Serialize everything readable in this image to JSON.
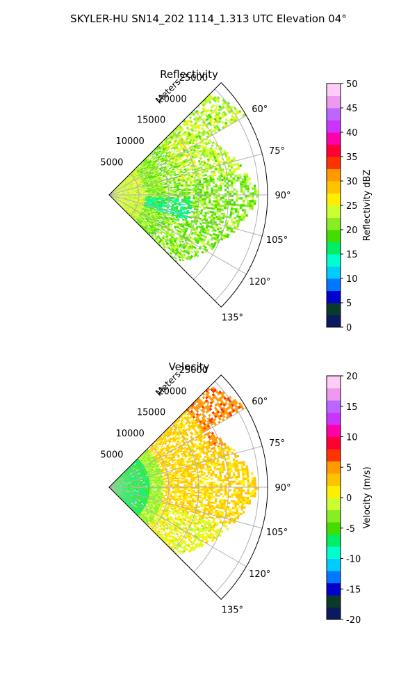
{
  "figure_title": "SKYLER-HU  SN14_202  1114_1.313 UTC Elevation 04°",
  "chart_data": [
    {
      "type": "heatmap",
      "projection": "polar-sector",
      "title": "Reflectivity",
      "radial_axis_label": "Meters",
      "radial_ticks": [
        "5000",
        "10000",
        "15000",
        "20000",
        "25000"
      ],
      "radial_tick_values": [
        5000,
        10000,
        15000,
        20000,
        25000
      ],
      "radial_max": 26500,
      "azimuth_range_deg": [
        45,
        135
      ],
      "azimuth_tick_labels": [
        "60°",
        "75°",
        "90°",
        "105°",
        "120°",
        "135°"
      ],
      "azimuth_tick_values": [
        60,
        75,
        90,
        105,
        120,
        135
      ],
      "grid": true,
      "colorbar": {
        "label": "Reflectivity dBZ",
        "range": [
          0,
          50
        ],
        "ticks": [
          "0",
          "5",
          "10",
          "15",
          "20",
          "25",
          "30",
          "35",
          "40",
          "45",
          "50"
        ],
        "tick_values": [
          0,
          5,
          10,
          15,
          20,
          25,
          30,
          35,
          40,
          45,
          50
        ],
        "colors": [
          "#0b1a5e",
          "#0a3a2a",
          "#0000cc",
          "#0077ff",
          "#00ccff",
          "#00ffcc",
          "#00ee66",
          "#44dd00",
          "#88ee22",
          "#ccff33",
          "#ffee00",
          "#ffc400",
          "#ff9a00",
          "#ff3300",
          "#ff0033",
          "#ff00aa",
          "#cc33ff",
          "#bb66ff",
          "#ee99ee",
          "#ffccf5"
        ]
      },
      "field_summary": {
        "typical_value": 22,
        "near_radar_value": 24,
        "notable": "scattered values around 27-30 dBZ to the north-east, lower values 15-18 dBZ near 95-105° at mid range"
      }
    },
    {
      "type": "heatmap",
      "projection": "polar-sector",
      "title": "Velocity",
      "radial_axis_label": "Meters",
      "radial_ticks": [
        "5000",
        "10000",
        "15000",
        "20000",
        "25000"
      ],
      "radial_tick_values": [
        5000,
        10000,
        15000,
        20000,
        25000
      ],
      "radial_max": 26500,
      "azimuth_range_deg": [
        45,
        135
      ],
      "azimuth_tick_labels": [
        "60°",
        "75°",
        "90°",
        "105°",
        "120°",
        "135°"
      ],
      "azimuth_tick_values": [
        60,
        75,
        90,
        105,
        120,
        135
      ],
      "grid": true,
      "colorbar": {
        "label": "Velocity (m/s)",
        "range": [
          -20,
          20
        ],
        "ticks": [
          "-20",
          "-15",
          "-10",
          "-5",
          "0",
          "5",
          "10",
          "15",
          "20"
        ],
        "tick_values": [
          -20,
          -15,
          -10,
          -5,
          0,
          5,
          10,
          15,
          20
        ],
        "colors": [
          "#0b1a5e",
          "#0a3a2a",
          "#0000cc",
          "#0077ff",
          "#00ccff",
          "#00ffcc",
          "#00ee66",
          "#44dd00",
          "#88ee22",
          "#ccff33",
          "#ffee00",
          "#ffc400",
          "#ff9a00",
          "#ff3300",
          "#ff0033",
          "#ff00aa",
          "#cc33ff",
          "#bb66ff",
          "#ee99ee",
          "#ffccf5"
        ]
      },
      "field_summary": {
        "near_radar_value": -8,
        "mid_range_value": 1,
        "far_north_value": 5,
        "notable": "inbound (-5 to -10 m/s) within ~7000 m, outbound 0-3 m/s beyond, up to ~6 m/s at far range near 60°"
      }
    }
  ]
}
